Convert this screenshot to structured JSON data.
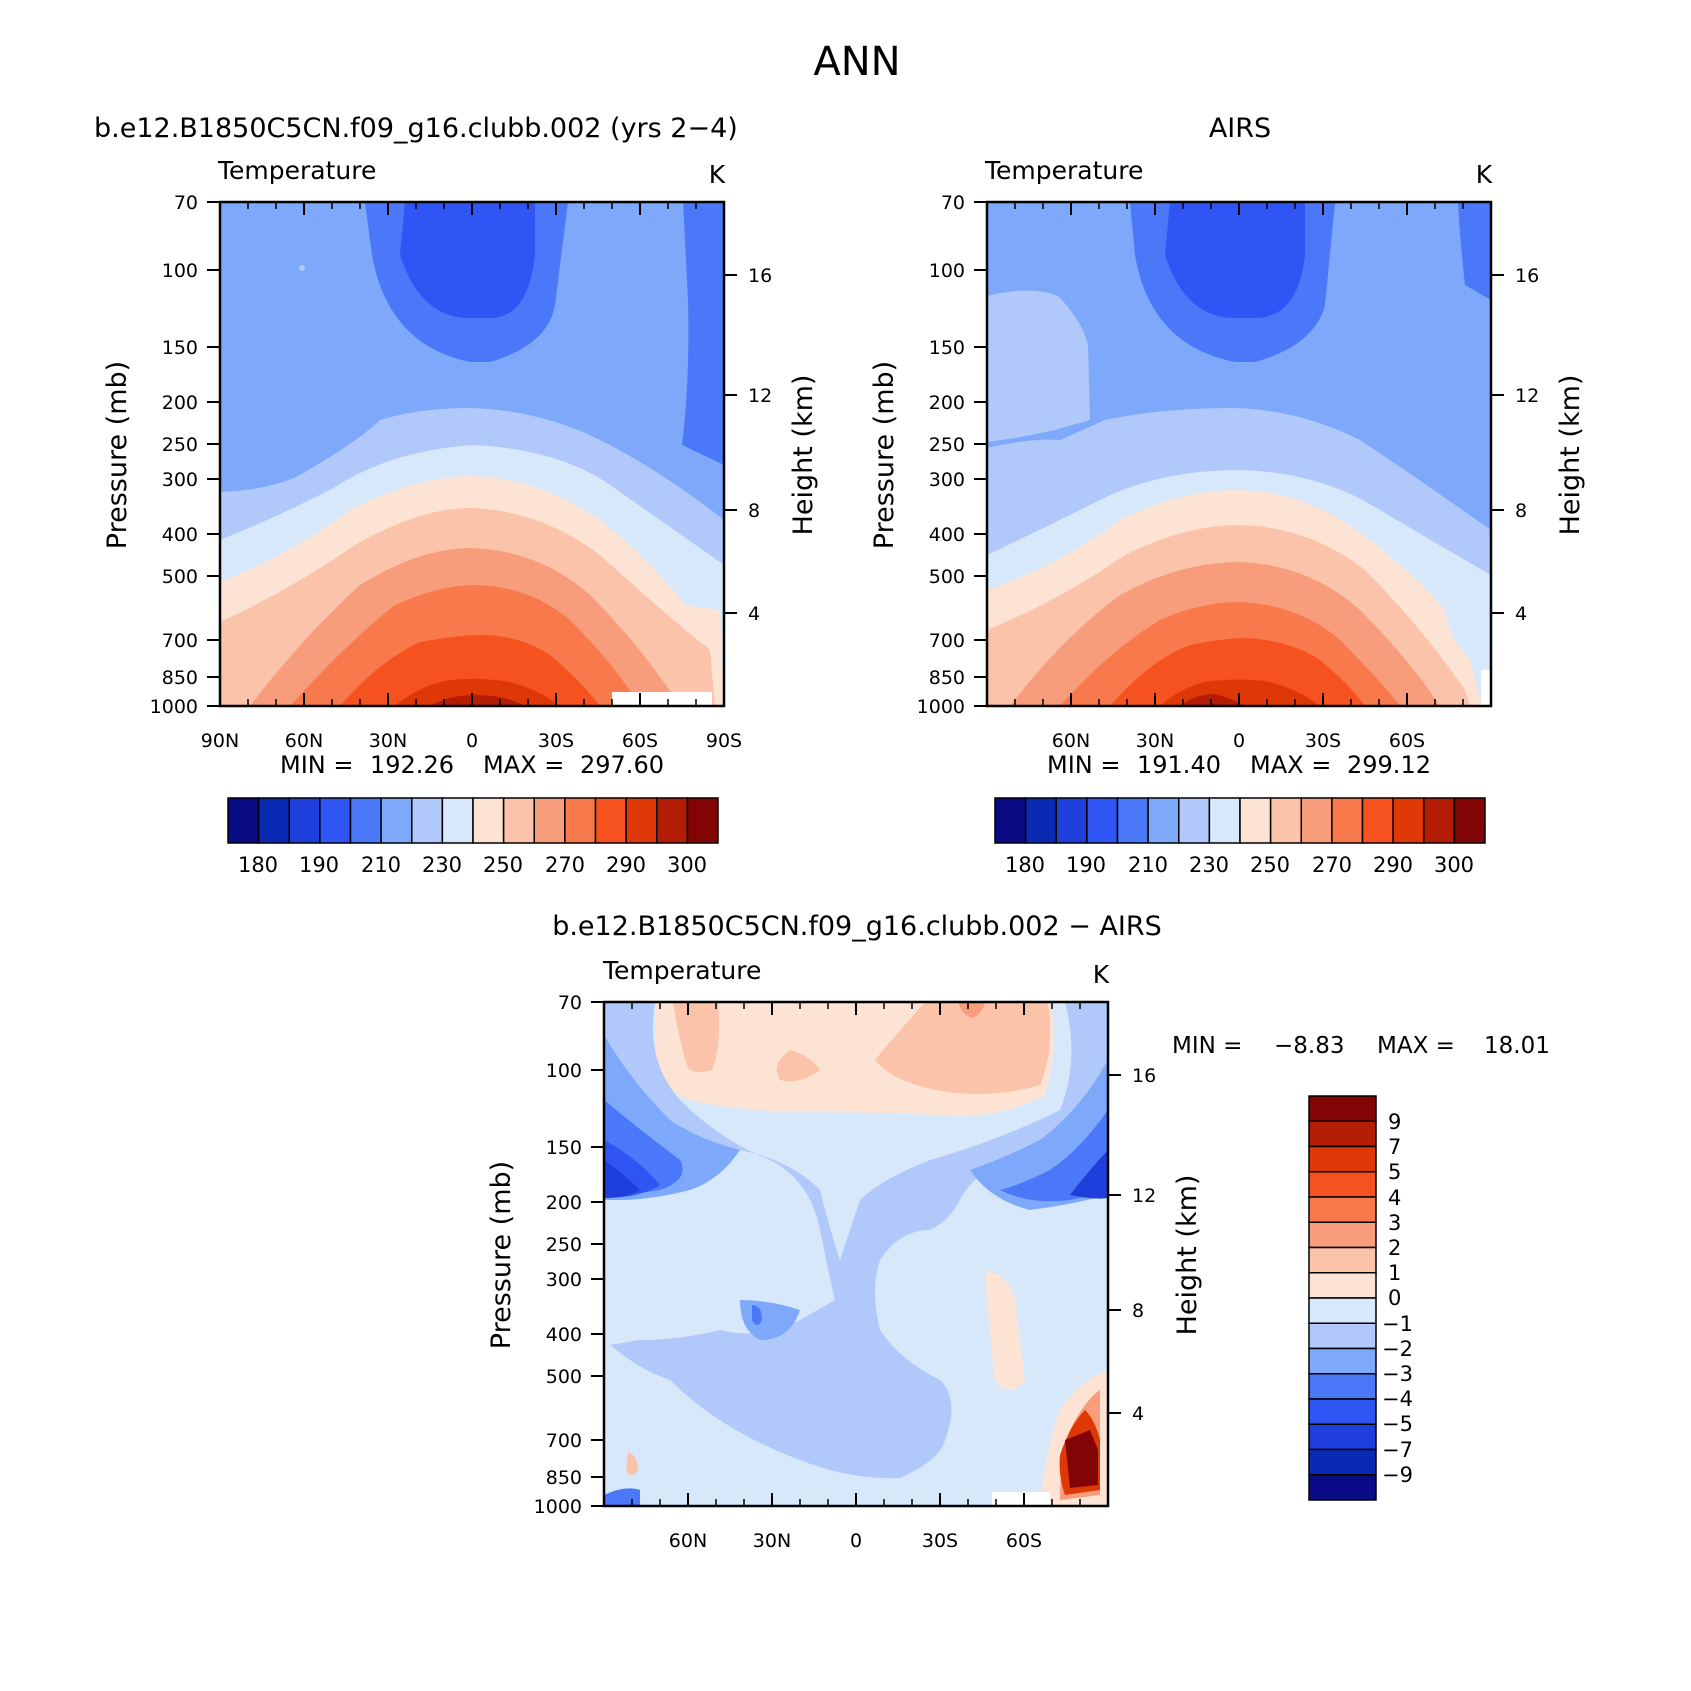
{
  "figure": {
    "title": "ANN"
  },
  "pressure_ticks": [
    "70",
    "100",
    "150",
    "200",
    "250",
    "300",
    "400",
    "500",
    "700",
    "850",
    "1000"
  ],
  "height_ticks": [
    "16",
    "12",
    "8",
    "4"
  ],
  "chart_data": [
    {
      "id": "model",
      "type": "contour",
      "title": "b.e12.B1850C5CN.f09_g16.clubb.002 (yrs 2−4)",
      "variable": "Temperature",
      "units": "K",
      "xlabel": "",
      "ylabel": "Pressure (mb)",
      "ylabel_right": "Height (km)",
      "x_range": [
        90,
        -90
      ],
      "x_ticks": [
        "90N",
        "60N",
        "30N",
        "0",
        "30S",
        "60S",
        "90S"
      ],
      "min": 192.26,
      "max": 297.6,
      "min_label": "MIN =",
      "max_label": "MAX =",
      "min_text": "192.26",
      "max_text": "297.60",
      "contour_levels": [
        180,
        185,
        190,
        200,
        210,
        220,
        230,
        240,
        250,
        260,
        270,
        280,
        290,
        295,
        300
      ],
      "colorbar_labels": [
        "180",
        "190",
        "210",
        "230",
        "250",
        "270",
        "290",
        "300"
      ]
    },
    {
      "id": "obs",
      "type": "contour",
      "title": "AIRS",
      "variable": "Temperature",
      "units": "K",
      "xlabel": "",
      "ylabel": "Pressure (mb)",
      "ylabel_right": "Height (km)",
      "x_range": [
        90,
        -90
      ],
      "x_ticks": [
        "60N",
        "30N",
        "0",
        "30S",
        "60S"
      ],
      "min": 191.4,
      "max": 299.12,
      "min_label": "MIN =",
      "max_label": "MAX =",
      "min_text": "191.40",
      "max_text": "299.12",
      "contour_levels": [
        180,
        185,
        190,
        200,
        210,
        220,
        230,
        240,
        250,
        260,
        270,
        280,
        290,
        295,
        300
      ],
      "colorbar_labels": [
        "180",
        "190",
        "210",
        "230",
        "250",
        "270",
        "290",
        "300"
      ]
    },
    {
      "id": "diff",
      "type": "contour",
      "title": "b.e12.B1850C5CN.f09_g16.clubb.002 − AIRS",
      "variable": "Temperature",
      "units": "K",
      "xlabel": "",
      "ylabel": "Pressure (mb)",
      "ylabel_right": "Height (km)",
      "x_range": [
        90,
        -90
      ],
      "x_ticks": [
        "60N",
        "30N",
        "0",
        "30S",
        "60S"
      ],
      "min": -8.83,
      "max": 18.01,
      "min_label": "MIN =",
      "max_label": "MAX =",
      "min_text": "−8.83",
      "max_text": "18.01",
      "contour_levels": [
        -9,
        -7,
        -5,
        -4,
        -3,
        -2,
        -1,
        0,
        1,
        2,
        3,
        4,
        5,
        7,
        9
      ],
      "colorbar_labels": [
        "9",
        "7",
        "5",
        "4",
        "3",
        "2",
        "1",
        "0",
        "−1",
        "−2",
        "−3",
        "−4",
        "−5",
        "−7",
        "−9"
      ]
    }
  ],
  "palette_temperature": [
    "#0a0a85",
    "#0a2ab4",
    "#1f3fdc",
    "#2f55f5",
    "#4a78f8",
    "#7ea8fa",
    "#b1c8fb",
    "#d8e8fb",
    "#fce3d3",
    "#fbc3a9",
    "#f89d7b",
    "#f87a4c",
    "#f5521f",
    "#de3807",
    "#b31d05",
    "#820404"
  ],
  "palette_diff": [
    "#820404",
    "#b31d05",
    "#de3807",
    "#f5521f",
    "#f87a4c",
    "#f89d7b",
    "#fbc3a9",
    "#fce3d3",
    "#d8e8fb",
    "#b1c8fb",
    "#7ea8fa",
    "#4a78f8",
    "#2f55f5",
    "#1f3fdc",
    "#0a2ab4",
    "#0a0a85"
  ]
}
